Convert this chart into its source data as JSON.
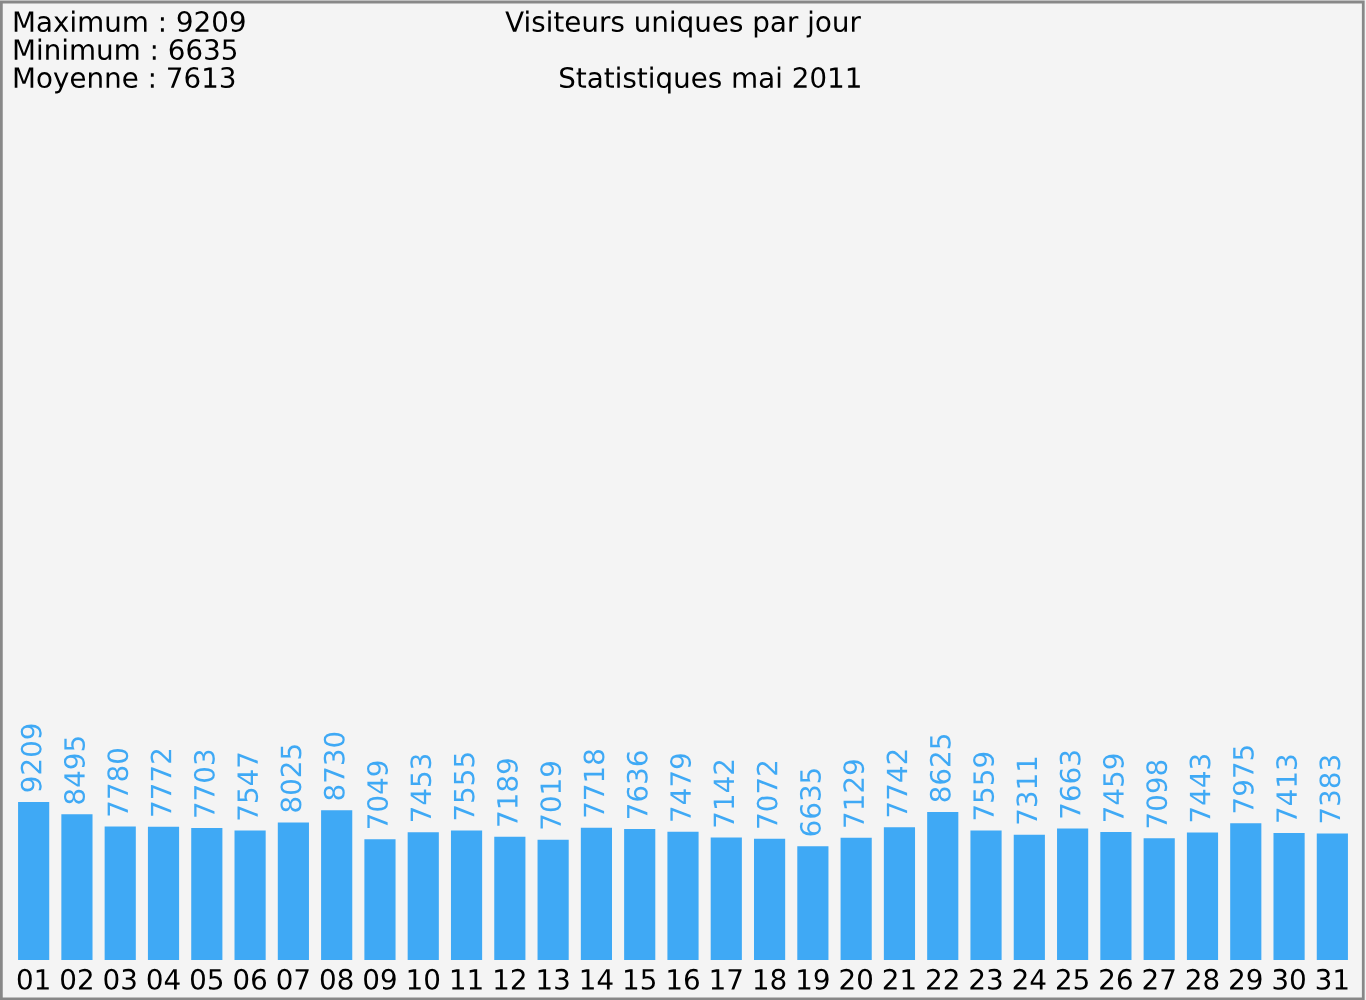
{
  "chart_data": {
    "type": "bar",
    "title": "Visiteurs uniques par jour",
    "subtitle": "Statistiques mai 2011",
    "annotations": [
      "Maximum : 9209",
      "Minimum : 6635",
      "Moyenne : 7613"
    ],
    "categories": [
      "01",
      "02",
      "03",
      "04",
      "05",
      "06",
      "07",
      "08",
      "09",
      "10",
      "11",
      "12",
      "13",
      "14",
      "15",
      "16",
      "17",
      "18",
      "19",
      "20",
      "21",
      "22",
      "23",
      "24",
      "25",
      "26",
      "27",
      "28",
      "29",
      "30",
      "31"
    ],
    "values": [
      9209,
      8495,
      7780,
      7772,
      7703,
      7547,
      8025,
      8730,
      7049,
      7453,
      7555,
      7189,
      7019,
      7718,
      7636,
      7479,
      7142,
      7072,
      6635,
      7129,
      7742,
      8625,
      7559,
      7311,
      7663,
      7459,
      7098,
      7443,
      7975,
      7413,
      7383
    ],
    "color": "#3fa9f5",
    "data_labels": true,
    "grid": false,
    "legend": false
  }
}
